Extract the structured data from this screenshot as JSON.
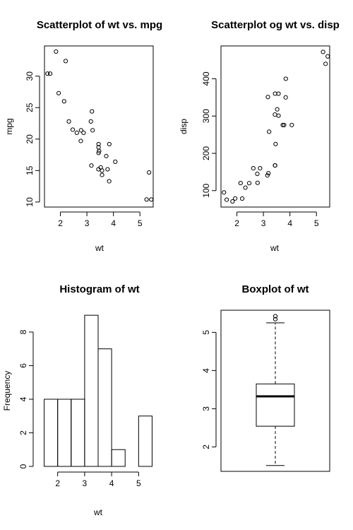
{
  "chart_data": [
    {
      "type": "scatter",
      "title": "Scatterplot of wt vs. mpg",
      "xlabel": "wt",
      "ylabel": "mpg",
      "xlim": [
        1.4,
        5.5
      ],
      "ylim": [
        9.2,
        34.8
      ],
      "xticks": [
        2,
        3,
        4,
        5
      ],
      "yticks": [
        10,
        15,
        20,
        25,
        30
      ],
      "grid": false,
      "series": [
        {
          "x": [
            2.62,
            2.875,
            2.32,
            3.215,
            3.44,
            3.46,
            3.57,
            3.19,
            3.15,
            3.44,
            3.44,
            4.07,
            3.73,
            3.78,
            5.25,
            5.424,
            5.345,
            2.2,
            1.615,
            1.835,
            2.465,
            3.52,
            3.435,
            3.84,
            3.845,
            1.935,
            2.14,
            1.513,
            3.17,
            2.77,
            3.57,
            2.78
          ],
          "y": [
            21.0,
            21.0,
            22.8,
            21.4,
            18.7,
            18.1,
            14.3,
            24.4,
            22.8,
            19.2,
            17.8,
            16.4,
            17.3,
            15.2,
            10.4,
            10.4,
            14.7,
            32.4,
            30.4,
            33.9,
            21.5,
            15.5,
            15.2,
            13.3,
            19.2,
            27.3,
            26.0,
            30.4,
            15.8,
            19.7,
            15.0,
            21.4
          ]
        }
      ]
    },
    {
      "type": "scatter",
      "title": "Scatterplot og wt vs. disp",
      "xlabel": "wt",
      "ylabel": "disp",
      "xlim": [
        1.4,
        5.5
      ],
      "ylim": [
        56,
        488
      ],
      "xticks": [
        2,
        3,
        4,
        5
      ],
      "yticks": [
        100,
        200,
        300,
        400
      ],
      "grid": false,
      "series": [
        {
          "x": [
            2.62,
            2.875,
            2.32,
            3.215,
            3.44,
            3.46,
            3.57,
            3.19,
            3.15,
            3.44,
            3.44,
            4.07,
            3.73,
            3.78,
            5.25,
            5.424,
            5.345,
            2.2,
            1.615,
            1.835,
            2.465,
            3.52,
            3.435,
            3.84,
            3.845,
            1.935,
            2.14,
            1.513,
            3.17,
            2.77,
            3.57,
            2.78
          ],
          "y": [
            160,
            160,
            108,
            258,
            360,
            225,
            360,
            146.7,
            140.8,
            167.6,
            167.6,
            275.8,
            275.8,
            275.8,
            472,
            460,
            440,
            78.7,
            75.7,
            71.1,
            120.1,
            318,
            304,
            350,
            400,
            79,
            120.3,
            95.1,
            351,
            145,
            301,
            121
          ]
        }
      ]
    },
    {
      "type": "bar",
      "title": "Histogram of wt",
      "xlabel": "wt",
      "ylabel": "Frequency",
      "xlim": [
        1.25,
        5.75
      ],
      "ylim": [
        0,
        9.3
      ],
      "xticks": [
        2,
        3,
        4,
        5
      ],
      "yticks": [
        0,
        2,
        4,
        6,
        8
      ],
      "bins": [
        [
          1.5,
          2
        ],
        [
          2,
          2.5
        ],
        [
          2.5,
          3
        ],
        [
          3,
          3.5
        ],
        [
          3.5,
          4
        ],
        [
          4,
          4.5
        ],
        [
          4.5,
          5
        ],
        [
          5,
          5.5
        ]
      ],
      "values": [
        4,
        4,
        4,
        9,
        7,
        1,
        0,
        3
      ]
    },
    {
      "type": "box",
      "title": "Boxplot of wt",
      "ylim": [
        1.36,
        5.58
      ],
      "yticks": [
        2,
        3,
        4,
        5
      ],
      "min": 1.513,
      "q1": 2.542,
      "median": 3.325,
      "q3": 3.65,
      "whisker_high": 5.25,
      "outliers": [
        5.345,
        5.424
      ]
    }
  ]
}
